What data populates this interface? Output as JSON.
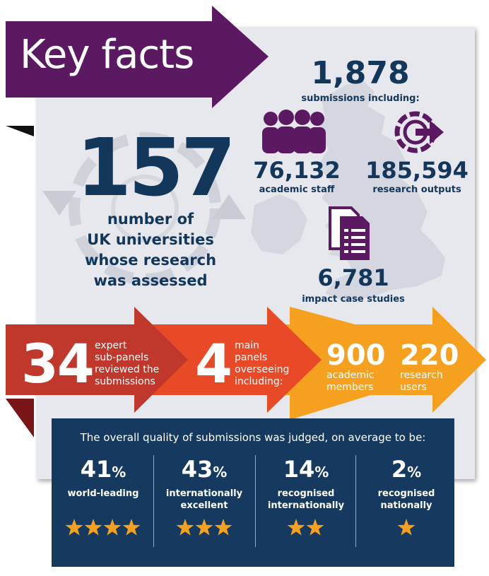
{
  "header": {
    "title": "Key facts"
  },
  "universities": {
    "value": "157",
    "caption_lines": [
      "number of",
      "UK universities",
      "whose research",
      "was assessed"
    ]
  },
  "submissions": {
    "value": "1,878",
    "label": "submissions including:",
    "staff": {
      "value": "76,132",
      "label": "academic staff"
    },
    "outputs": {
      "value": "185,594",
      "label": "research outputs"
    },
    "impact": {
      "value": "6,781",
      "label": "impact case studies"
    }
  },
  "panels": {
    "sub_panels": {
      "value": "34",
      "lines": [
        "expert",
        "sub-panels",
        "reviewed the",
        "submissions"
      ]
    },
    "main_panels": {
      "value": "4",
      "lines": [
        "main",
        "panels",
        "overseeing",
        "including:"
      ]
    },
    "academic": {
      "value": "900",
      "lines": [
        "academic",
        "members"
      ]
    },
    "research_users": {
      "value": "220",
      "lines": [
        "research",
        "users"
      ]
    }
  },
  "quality": {
    "title": "The overall quality of submissions was judged, on average to be:",
    "items": [
      {
        "pct": "41",
        "unit": "%",
        "label_lines": [
          "world-leading",
          ""
        ],
        "stars": 4
      },
      {
        "pct": "43",
        "unit": "%",
        "label_lines": [
          "internationally",
          "excellent"
        ],
        "stars": 3
      },
      {
        "pct": "14",
        "unit": "%",
        "label_lines": [
          "recognised",
          "internationally"
        ],
        "stars": 2
      },
      {
        "pct": "2",
        "unit": "%",
        "label_lines": [
          "recognised",
          "nationally"
        ],
        "stars": 1
      }
    ]
  },
  "colors": {
    "purple": "#5b1961",
    "navy": "#13365b",
    "red": "#c0382b",
    "orange": "#e84a27",
    "amber": "#f5a01e",
    "star": "#f5a01e",
    "panel_bg": "#e7e8ed"
  },
  "icons": [
    "people-icon",
    "outputs-arrow-icon",
    "documents-icon",
    "uk-map-illustration",
    "recycle-arrows-illustration"
  ]
}
